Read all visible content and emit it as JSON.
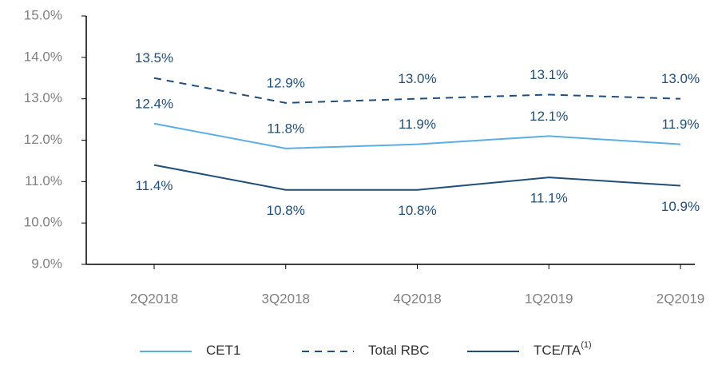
{
  "chart_data": {
    "type": "line",
    "categories": [
      "2Q2018",
      "3Q2018",
      "4Q2018",
      "1Q2019",
      "2Q2019"
    ],
    "ylim": [
      9.0,
      15.0
    ],
    "yticks": [
      {
        "value": 9.0,
        "label": "9.0%"
      },
      {
        "value": 10.0,
        "label": "10.0%"
      },
      {
        "value": 11.0,
        "label": "11.0%"
      },
      {
        "value": 12.0,
        "label": "12.0%"
      },
      {
        "value": 13.0,
        "label": "13.0%"
      },
      {
        "value": 14.0,
        "label": "14.0%"
      },
      {
        "value": 15.0,
        "label": "15.0%"
      }
    ],
    "series": [
      {
        "name": "CET1",
        "color": "#5aaee6",
        "dash": false,
        "label_position": "above",
        "values": [
          12.4,
          11.8,
          11.9,
          12.1,
          11.9
        ],
        "value_labels": [
          "12.4%",
          "11.8%",
          "11.9%",
          "12.1%",
          "11.9%"
        ]
      },
      {
        "name": "Total RBC",
        "color": "#1f4e79",
        "dash": true,
        "label_position": "above",
        "values": [
          13.5,
          12.9,
          13.0,
          13.1,
          13.0
        ],
        "value_labels": [
          "13.5%",
          "12.9%",
          "13.0%",
          "13.1%",
          "13.0%"
        ]
      },
      {
        "name": "TCE/TA",
        "footnote_marker": "(1)",
        "color": "#1f4e79",
        "dash": false,
        "label_position": "below",
        "values": [
          11.4,
          10.8,
          10.8,
          11.1,
          10.9
        ],
        "value_labels": [
          "11.4%",
          "10.8%",
          "10.8%",
          "11.1%",
          "10.9%"
        ]
      }
    ],
    "label_color": "#1f4e79",
    "legend": "bottom"
  }
}
